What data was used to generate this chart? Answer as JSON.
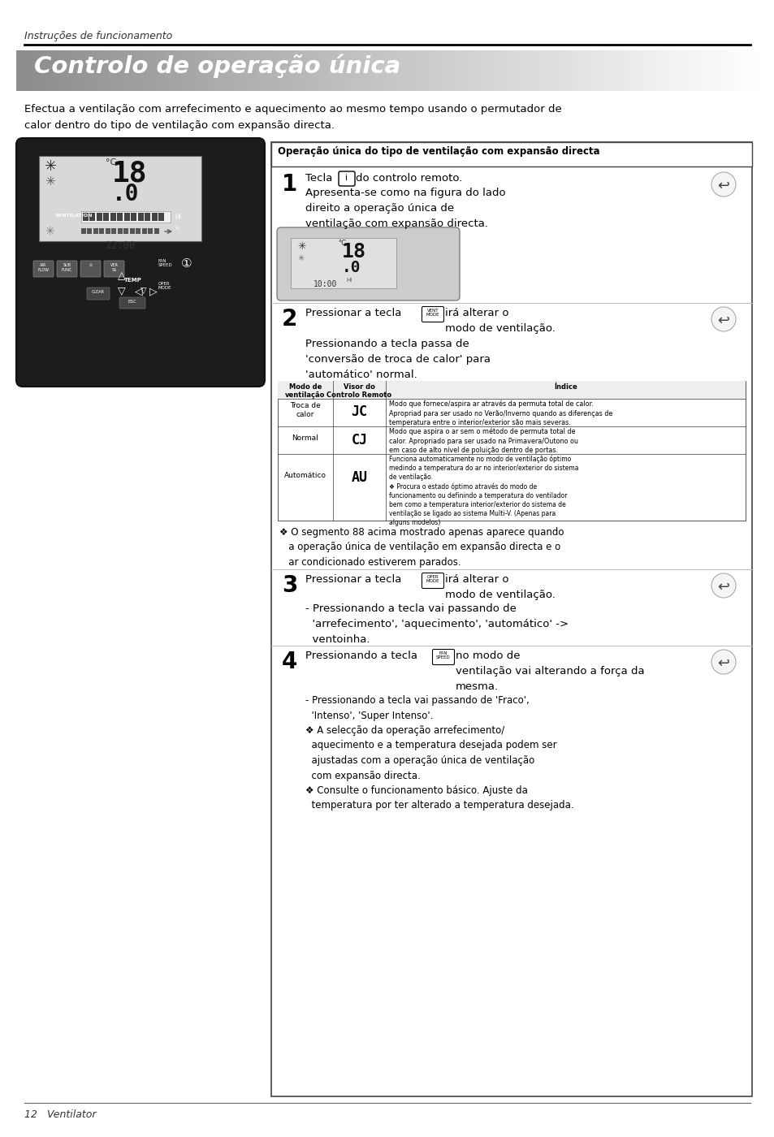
{
  "page_title": "Controlo de operação única",
  "section_label": "Instruções de funcionamento",
  "footer_text": "12   Ventilator",
  "intro_text": "Efectua a ventilação com arrefecimento e aquecimento ao mesmo tempo usando o permutador de\ncalor dentro do tipo de ventilação com expansão directa.",
  "box_title": "Operação única do tipo de ventilação com expansão directa",
  "step1_text3": "Apresenta-se como na figura do lado\ndireito a operação única de\nventilação com expansão directa.",
  "step2_text3": "Pressionando a tecla passa de\n'conversão de troca de calor' para\n'automático' normal.",
  "table_headers": [
    "Modo de\nventilação",
    "Visor do\nControlo Remoto",
    "Índice"
  ],
  "table_row1_col1": "Troca de\ncalor",
  "table_row1_col2": "JC",
  "table_row1_col3": "Modo que fornece/aspira ar através da permuta total de calor.\nApropriad para ser usado no Verão/Inverno quando as diferenças de\ntemperatura entre o interior/exterior são mais severas.",
  "table_row2_col1": "Normal",
  "table_row2_col2": "CJ",
  "table_row2_col3": "Modo que aspira o ar sem o método de permuta total de\ncalor. Apropriado para ser usado na Primavera/Outono ou\nem caso de alto nível de poluição dentro de portas.",
  "table_row3_col1": "Automático",
  "table_row3_col2": "AU",
  "table_row3_col3": "Funciona automaticamente no modo de ventilação óptimo\nmedindo a temperatura do ar no interior/exterior do sistema\nde ventilação.\n❖ Procura o estado óptimo através do modo de\nfuncionamento ou definindo a temperatura do ventilador\nbem como a temperatura interior/exterior do sistema de\nventilação se ligado ao sistema Multi-V. (Apenas para\nalguns modelos)",
  "note1": "❖ O segmento 88 acima mostrado apenas aparece quando\n   a operação única de ventilação em expansão directa e o\n   ar condicionado estiverem parados.",
  "step3_text3": "- Pressionando a tecla vai passando de\n  'arrefecimento', 'aquecimento', 'automático' ->\n  ventoinha.",
  "step4_text3": "- Pressionando a tecla vai passando de 'Fraco',\n  'Intenso', 'Super Intenso'.\n❖ A selecção da operação arrefecimento/\n  aquecimento e a temperatura desejada podem ser\n  ajustadas com a operação única de ventilação\n  com expansão directa.\n❖ Consulte o funcionamento básico. Ajuste da\n  temperatura por ter alterado a temperatura desejada.",
  "bg_color": "#ffffff"
}
